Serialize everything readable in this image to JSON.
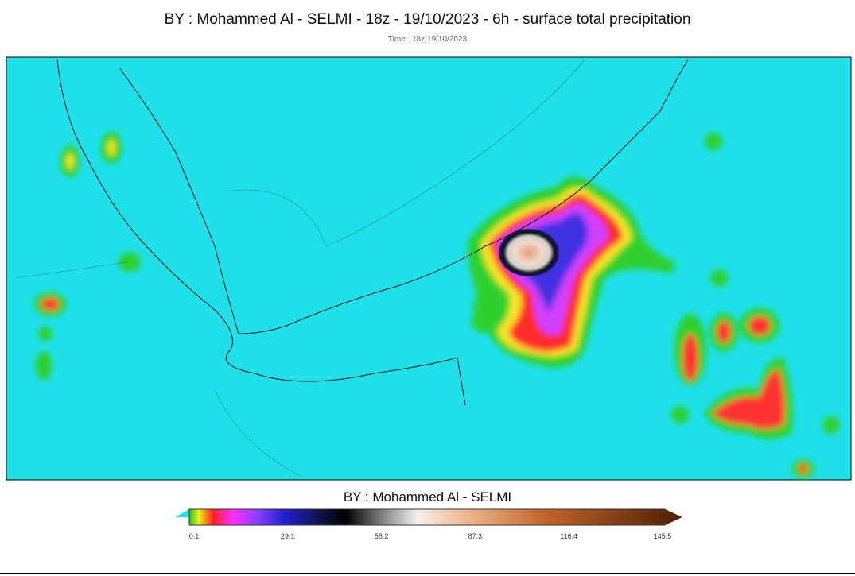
{
  "header": {
    "title": "BY : Mohammed Al - SELMI - 18z - 19/10/2023 - 6h - surface total precipitation",
    "subtitle": "Time : 18z 19/10/2023"
  },
  "colorbar": {
    "title": "BY : Mohammed Al - SELMI",
    "ticks": [
      "0.1",
      "29.1",
      "58.2",
      "87.3",
      "116.4",
      "145.5"
    ]
  }
}
